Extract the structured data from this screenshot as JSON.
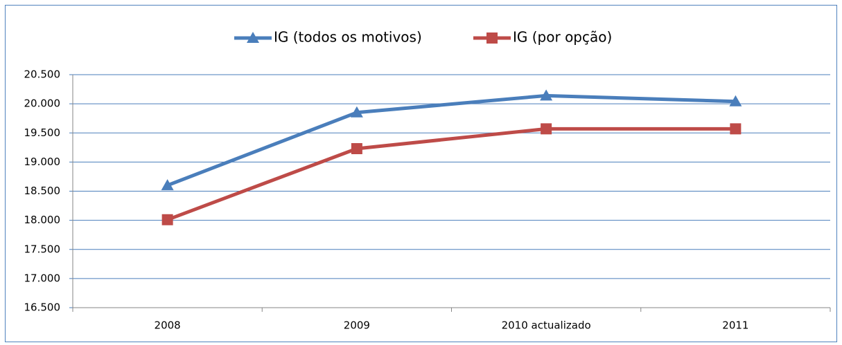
{
  "chart_data": {
    "type": "line",
    "categories": [
      "2008",
      "2009",
      "2010 actualizado",
      "2011"
    ],
    "series": [
      {
        "name": "IG (todos os motivos)",
        "color": "#4a7ebb",
        "marker": "triangle",
        "values": [
          18600,
          19850,
          20140,
          20040
        ]
      },
      {
        "name": "IG (por opção)",
        "color": "#be4b48",
        "marker": "square",
        "values": [
          18010,
          19230,
          19570,
          19570
        ]
      }
    ],
    "ylim": [
      16500,
      20500
    ],
    "yticks": [
      {
        "value": 16500,
        "label": "16.500"
      },
      {
        "value": 17000,
        "label": "17.000"
      },
      {
        "value": 17500,
        "label": "17.500"
      },
      {
        "value": 18000,
        "label": "18.000"
      },
      {
        "value": 18500,
        "label": "18.500"
      },
      {
        "value": 19000,
        "label": "19.000"
      },
      {
        "value": 19500,
        "label": "19.500"
      },
      {
        "value": 20000,
        "label": "20.000"
      },
      {
        "value": 20500,
        "label": "20.500"
      }
    ],
    "grid": true,
    "legend": "top"
  }
}
